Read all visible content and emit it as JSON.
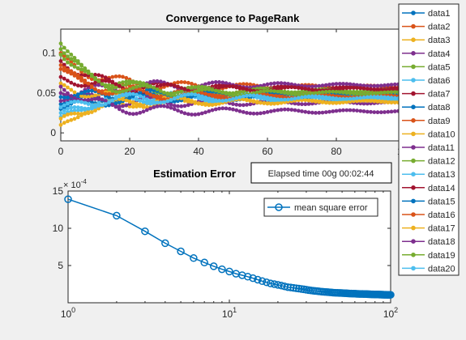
{
  "chart_data": [
    {
      "type": "line",
      "title": "Convergence to PageRank",
      "xlabel": "",
      "ylabel": "",
      "xlim": [
        0,
        100
      ],
      "ylim": [
        -0.01,
        0.13
      ],
      "xticks": [
        0,
        20,
        40,
        60,
        80,
        100
      ],
      "xtick_labels": [
        "0",
        "20",
        "40",
        "60",
        "80",
        "100"
      ],
      "yticks": [
        0,
        0.05,
        0.1
      ],
      "ytick_labels": [
        "0",
        "0.05",
        "0.1"
      ],
      "grid": false,
      "legend_position": "outside-right",
      "colors": [
        "#0072BD",
        "#D95319",
        "#EDB120",
        "#7E2F8E",
        "#77AC30",
        "#4DBEEE",
        "#A2142F"
      ],
      "series": [
        {
          "name": "data1",
          "start": 0.03,
          "end": 0.044
        },
        {
          "name": "data2",
          "start": 0.1,
          "end": 0.058
        },
        {
          "name": "data3",
          "start": 0.01,
          "end": 0.042
        },
        {
          "name": "data4",
          "start": 0.05,
          "end": 0.038
        },
        {
          "name": "data5",
          "start": 0.112,
          "end": 0.052
        },
        {
          "name": "data6",
          "start": 0.02,
          "end": 0.047
        },
        {
          "name": "data7",
          "start": 0.09,
          "end": 0.056
        },
        {
          "name": "data8",
          "start": 0.036,
          "end": 0.045
        },
        {
          "name": "data9",
          "start": 0.08,
          "end": 0.05
        },
        {
          "name": "data10",
          "start": 0.062,
          "end": 0.04
        },
        {
          "name": "data11",
          "start": 0.04,
          "end": 0.06
        },
        {
          "name": "data12",
          "start": 0.105,
          "end": 0.053
        },
        {
          "name": "data13",
          "start": 0.025,
          "end": 0.043
        },
        {
          "name": "data14",
          "start": 0.07,
          "end": 0.055
        },
        {
          "name": "data15",
          "start": 0.045,
          "end": 0.048
        },
        {
          "name": "data16",
          "start": 0.085,
          "end": 0.046
        },
        {
          "name": "data17",
          "start": 0.018,
          "end": 0.039
        },
        {
          "name": "data18",
          "start": 0.058,
          "end": 0.027
        },
        {
          "name": "data19",
          "start": 0.098,
          "end": 0.05
        },
        {
          "name": "data20",
          "start": 0.032,
          "end": 0.044
        }
      ]
    },
    {
      "type": "line",
      "title": "Estimation Error",
      "x_scale": "log",
      "y_multiplier_label": "× 10",
      "y_multiplier_exponent": "-4",
      "xlim": [
        1,
        100
      ],
      "ylim": [
        0,
        15
      ],
      "xticks": [
        1,
        10,
        100
      ],
      "xtick_base": "10",
      "xtick_exponents": [
        "0",
        "1",
        "2"
      ],
      "yticks": [
        5,
        10,
        15
      ],
      "ytick_labels": [
        "5",
        "10",
        "15"
      ],
      "grid": false,
      "legend_position": "top-right",
      "series": [
        {
          "name": "mean square error",
          "color": "#0072BD",
          "x_start": 1,
          "x_end": 100,
          "values": [
            13.9,
            11.7,
            9.6,
            8.0,
            6.9,
            6.0,
            5.4,
            4.9,
            4.5,
            4.2,
            3.9,
            3.7,
            3.5,
            3.3,
            3.1,
            2.9,
            2.75,
            2.6,
            2.5,
            2.4,
            2.3,
            2.2,
            2.1,
            2.05,
            2.0,
            1.95,
            1.9,
            1.85,
            1.8,
            1.75,
            1.7,
            1.66,
            1.62,
            1.59,
            1.56,
            1.53,
            1.5,
            1.48,
            1.46,
            1.44,
            1.42,
            1.4,
            1.38,
            1.36,
            1.35,
            1.34,
            1.33,
            1.32,
            1.31,
            1.3,
            1.29,
            1.28,
            1.27,
            1.26,
            1.25,
            1.24,
            1.24,
            1.23,
            1.22,
            1.22,
            1.21,
            1.2,
            1.2,
            1.19,
            1.19,
            1.18,
            1.18,
            1.17,
            1.17,
            1.16,
            1.16,
            1.15,
            1.15,
            1.14,
            1.14,
            1.13,
            1.13,
            1.13,
            1.12,
            1.12,
            1.12,
            1.11,
            1.11,
            1.11,
            1.1,
            1.1,
            1.1,
            1.09,
            1.09,
            1.09,
            1.08,
            1.08,
            1.08,
            1.08,
            1.07,
            1.07,
            1.07,
            1.07,
            1.06,
            1.06
          ]
        }
      ]
    }
  ],
  "annotation": {
    "elapsed_text": "Elapsed time 00g 00:02:44"
  }
}
